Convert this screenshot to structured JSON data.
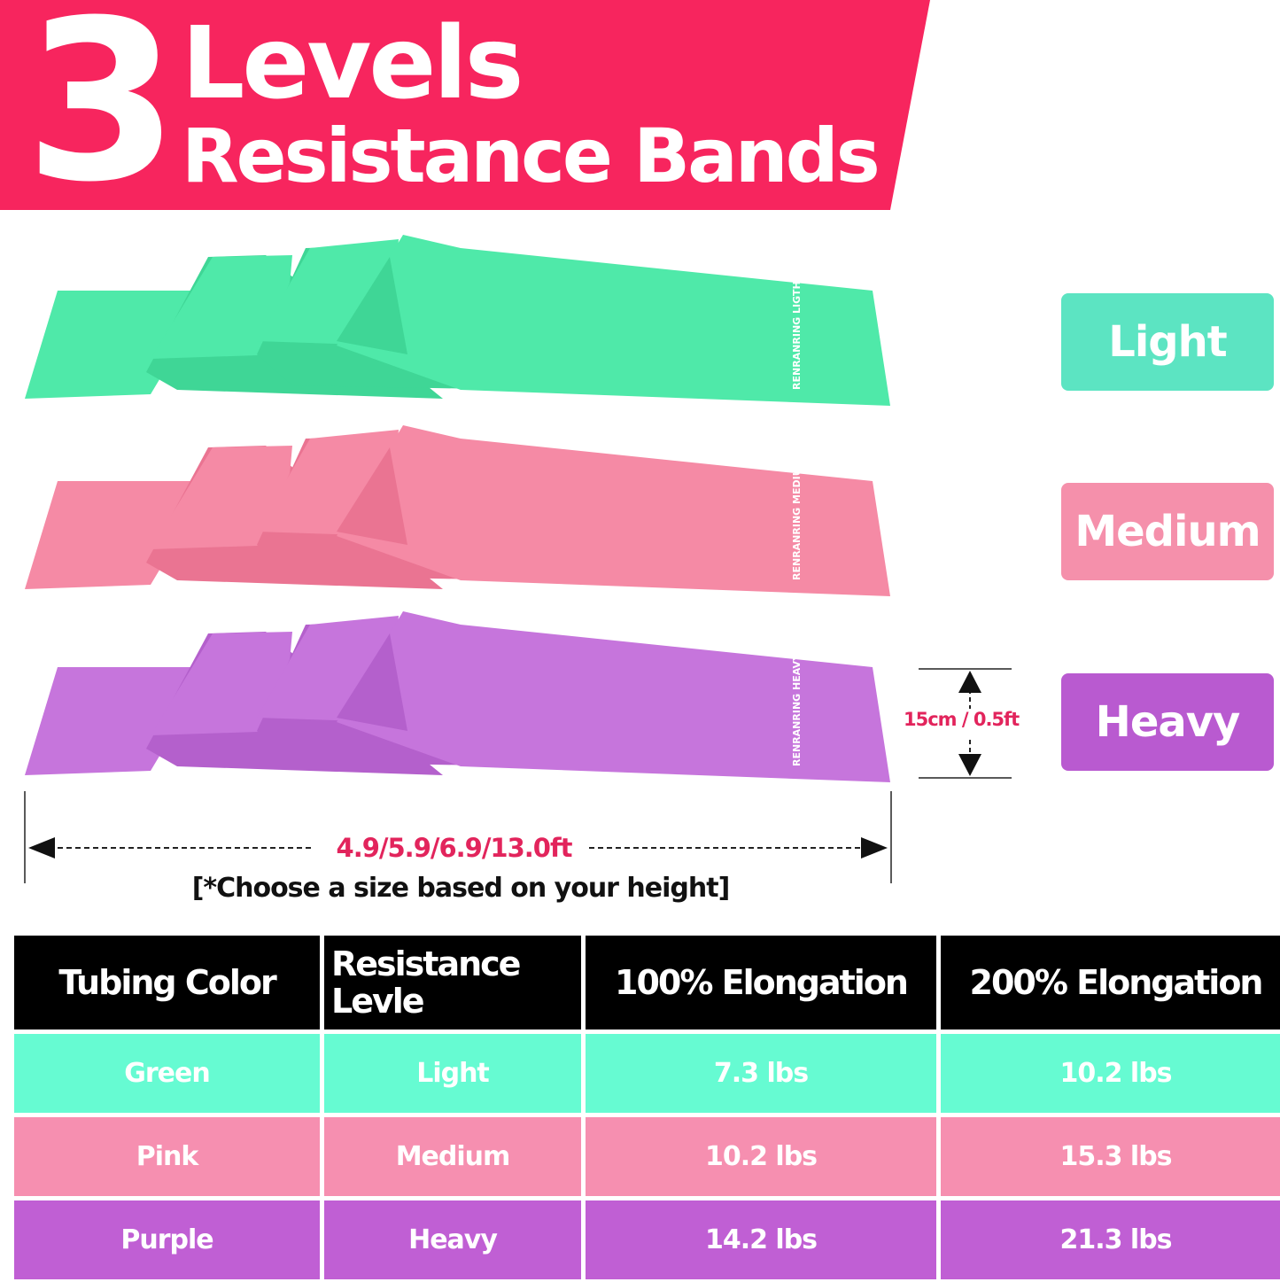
{
  "header": {
    "number": "3",
    "line1": "Levels",
    "line2": "Resistance Bands",
    "color": "#f7255e"
  },
  "bands": [
    {
      "color": "#4fe9a9",
      "shade": "#3fd696",
      "logo": "RENRANRING",
      "logo_level": "LIGTH"
    },
    {
      "color": "#f58aa5",
      "shade": "#ea7492",
      "logo": "RENRANRING",
      "logo_level": "MEDIUM"
    },
    {
      "color": "#c675dc",
      "shade": "#b460cc",
      "logo": "RENRANRING",
      "logo_level": "HEAVY"
    }
  ],
  "levels": [
    {
      "label": "Light",
      "color": "#5ce4c2"
    },
    {
      "label": "Medium",
      "color": "#f590ab"
    },
    {
      "label": "Heavy",
      "color": "#b95ad0"
    }
  ],
  "dimensions": {
    "width": "15cm / 0.5ft",
    "length": "4.9/5.9/6.9/13.0ft",
    "note": "[*Choose a size based on your height]"
  },
  "table": {
    "headers": [
      "Tubing Color",
      "Resistance Levle",
      "100% Elongation",
      "200% Elongation"
    ],
    "rows": [
      [
        "Green",
        "Light",
        "7.3 lbs",
        "10.2 lbs"
      ],
      [
        "Pink",
        "Medium",
        "10.2 lbs",
        "15.3 lbs"
      ],
      [
        "Purple",
        "Heavy",
        "14.2 lbs",
        "21.3 lbs"
      ]
    ]
  }
}
